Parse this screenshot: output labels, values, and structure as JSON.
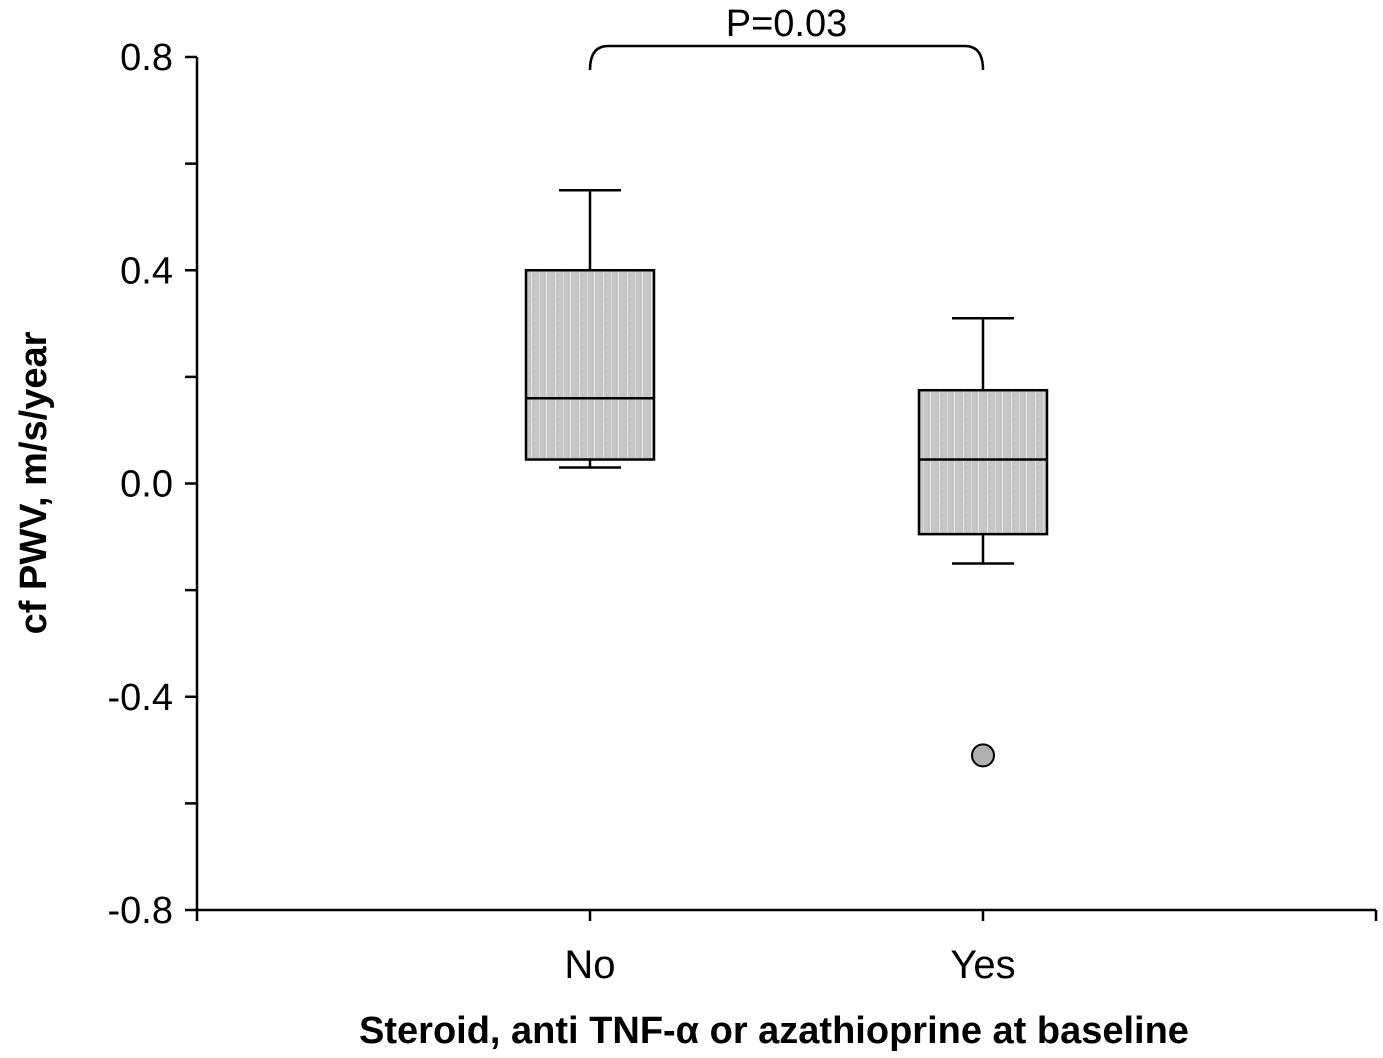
{
  "chart_data": {
    "type": "box",
    "title": "",
    "xlabel": "Steroid, anti TNF-α or azathioprine at baseline",
    "ylabel": "cf PWV, m/s/year",
    "ylim": [
      -0.8,
      0.8
    ],
    "y_ticks": [
      -0.8,
      -0.4,
      0.0,
      0.4,
      0.8
    ],
    "y_tick_labels": [
      "-0.8",
      "-0.4",
      "0.0",
      "0.4",
      "0.8"
    ],
    "categories": [
      "No",
      "Yes"
    ],
    "boxes": [
      {
        "category": "No",
        "whisker_low": 0.03,
        "q1": 0.045,
        "median": 0.16,
        "q3": 0.4,
        "whisker_high": 0.55,
        "outliers": []
      },
      {
        "category": "Yes",
        "whisker_low": -0.15,
        "q1": -0.095,
        "median": 0.045,
        "q3": 0.175,
        "whisker_high": 0.31,
        "outliers": [
          -0.51
        ]
      }
    ],
    "annotation": {
      "text": "P=0.03",
      "between": [
        "No",
        "Yes"
      ]
    },
    "grid": false,
    "colors": {
      "box_fill": "#c8c8c8",
      "outlier_fill": "#b0b0b0",
      "line": "#000000"
    }
  }
}
